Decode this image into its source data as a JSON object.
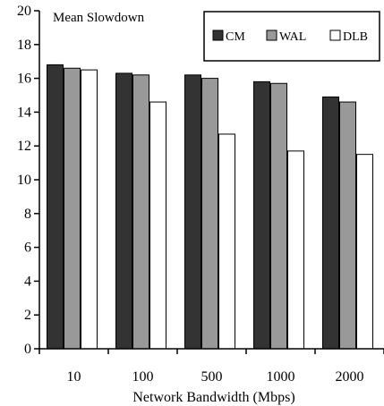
{
  "chart_data": {
    "type": "bar",
    "title": "Mean Slowdown",
    "xlabel": "Network Bandwidth (Mbps)",
    "ylabel": "",
    "categories": [
      "10",
      "100",
      "500",
      "1000",
      "2000"
    ],
    "series": [
      {
        "name": "CM",
        "color": "#333333",
        "values": [
          16.8,
          16.3,
          16.2,
          15.8,
          14.9
        ]
      },
      {
        "name": "WAL",
        "color": "#999999",
        "values": [
          16.6,
          16.2,
          16.0,
          15.7,
          14.6
        ]
      },
      {
        "name": "DLB",
        "color": "#ffffff",
        "values": [
          16.5,
          14.6,
          12.7,
          11.7,
          11.5
        ]
      }
    ],
    "ylim": [
      0,
      20
    ],
    "yticks": [
      "0",
      "2",
      "4",
      "6",
      "8",
      "10",
      "12",
      "14",
      "16",
      "18",
      "20"
    ],
    "grid": false,
    "legend_position": "top-right"
  }
}
